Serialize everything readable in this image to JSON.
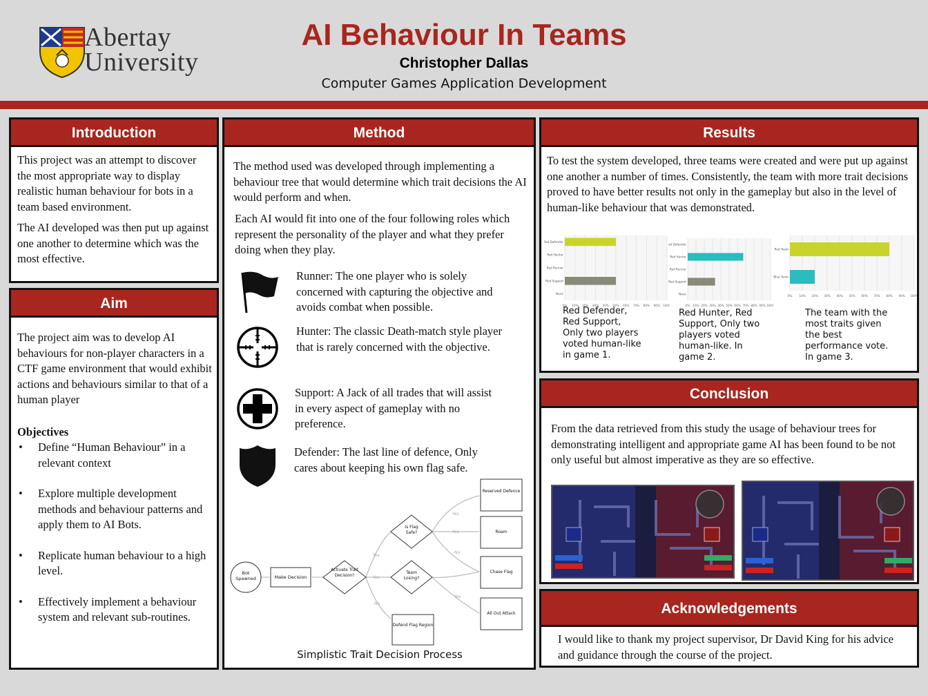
{
  "header": {
    "logo_line1": "Abertay",
    "logo_line2": "University",
    "title": "AI Behaviour In Teams",
    "author": "Christopher Dallas",
    "course": "Computer Games Application Development"
  },
  "colors": {
    "accent": "#a8261f",
    "chart_yellow": "#c8d42a",
    "chart_teal": "#2bbcc0",
    "chart_grey": "#8a8a78"
  },
  "introduction": {
    "title": "Introduction",
    "p1": "This project was an attempt to discover the most appropriate way to display realistic human behaviour for bots in a team based environment.",
    "p2": "The AI developed was then put up against one another to determine which was the most effective."
  },
  "aim": {
    "title": "Aim",
    "p1": "The project aim was to develop AI behaviours for non-player characters in a CTF game environment that would exhibit actions and behaviours similar to that of a human player",
    "objectives_heading": "Objectives",
    "objectives": [
      "Define “Human Behaviour” in a relevant context",
      "Explore multiple development methods and behaviour patterns and apply them to AI Bots.",
      "Replicate human behaviour to a high level.",
      "Effectively implement a behaviour system and relevant sub-routines."
    ]
  },
  "method": {
    "title": "Method",
    "p1": "The method used was developed through implementing a behaviour tree that would determine which trait decisions the AI would perform and when.",
    "p2": "Each AI would fit into one of the four following roles which represent the personality of the player and what they prefer doing when they play.",
    "roles": [
      {
        "icon": "flag-icon",
        "text": "Runner: The one player who is solely concerned with capturing the objective and avoids combat when possible."
      },
      {
        "icon": "crosshair-icon",
        "text": "Hunter: The classic Death-match style player that is rarely concerned with the objective."
      },
      {
        "icon": "medical-cross-icon",
        "text": "Support: A Jack of all trades that will assist in every aspect of gameplay with no preference."
      },
      {
        "icon": "shield-icon",
        "text": "Defender: The last line of defence, Only cares about keeping his own flag safe."
      }
    ],
    "diagram": {
      "nodes": {
        "bot_spawned": "Bot Spawned",
        "make_decision": "Make Decision",
        "activate_trait": "Activate Trait Decision?",
        "flag_safe": "Is Flag Safe?",
        "team_losing": "Team Losing?",
        "reserved_defence": "Reserved Defence",
        "roam": "Roam",
        "chase_flag": "Chase Flag",
        "all_out_attack": "All Out Attack",
        "defend_flag_region": "Defend Flag Region"
      },
      "yes": "Yes",
      "no": "No",
      "caption": "Simplistic Trait Decision Process"
    }
  },
  "results": {
    "title": "Results",
    "p1": "To test the system developed, three teams were created and were put up against one another a number of times. Consistently, the team with more trait decisions proved to have better results not only in the gameplay but also in the level of human-like behaviour that was demonstrated.",
    "chart_data": [
      {
        "type": "bar",
        "orientation": "horizontal",
        "categories": [
          "Red Defender",
          "Red Hunter",
          "Red Runner",
          "Red Support",
          "None"
        ],
        "values": [
          50,
          0,
          0,
          50,
          0
        ],
        "xlim": [
          0,
          100
        ],
        "ticks": [
          "0%",
          "10%",
          "20%",
          "30%",
          "40%",
          "50%",
          "60%",
          "70%",
          "80%",
          "90%",
          "100%"
        ],
        "color": "mixed"
      },
      {
        "type": "bar",
        "orientation": "horizontal",
        "categories": [
          "Red Defender",
          "Red Hunter",
          "Red Runner",
          "Red Support",
          "None"
        ],
        "values": [
          0,
          67,
          0,
          33,
          0
        ],
        "xlim": [
          0,
          100
        ],
        "ticks": [
          "0%",
          "10%",
          "20%",
          "30%",
          "40%",
          "50%",
          "60%",
          "70%",
          "80%",
          "90%",
          "100%"
        ],
        "color": "mixed"
      },
      {
        "type": "bar",
        "orientation": "horizontal",
        "categories": [
          "Red Team",
          "Blue Team"
        ],
        "values": [
          80,
          20
        ],
        "xlim": [
          0,
          100
        ],
        "ticks": [
          "0%",
          "10%",
          "20%",
          "30%",
          "40%",
          "50%",
          "60%",
          "70%",
          "80%",
          "90%",
          "100%"
        ],
        "color": "mixed"
      }
    ],
    "captions": [
      "Red Defender, Red Support, Only two players voted human-like in game 1.",
      "Red Hunter, Red Support, Only two players voted human-like. In game 2.",
      "The team with the most traits given the best performance vote. In game 3."
    ]
  },
  "conclusion": {
    "title": "Conclusion",
    "p1": "From the data retrieved from this study the usage of behaviour trees for demonstrating intelligent and appropriate game AI has been found to be not only useful but almost imperative as they are so effective."
  },
  "acknowledgements": {
    "title": "Acknowledgements",
    "p1": "I would like to thank my project supervisor, Dr David King for his advice and guidance through the course of the project."
  }
}
